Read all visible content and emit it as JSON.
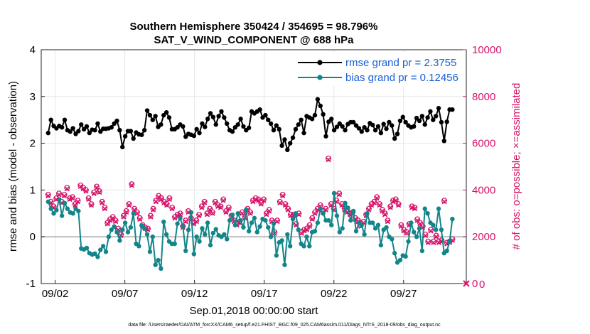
{
  "chart_data": {
    "type": "line",
    "title": "Southern Hemisphere 350424 / 354695 = 98.796%",
    "subtitle": "SAT_V_WIND_COMPONENT @ 688 hPa",
    "xlabel": "Sep.01,2018 00:00:00 start",
    "ylabel": "rmse and bias (model - observation)",
    "ylabel_right": "# of obs: o=possible; ×=assimilated",
    "xlim": [
      0.5,
      31
    ],
    "ylim": [
      -1,
      4
    ],
    "ylim_right": [
      0,
      10000
    ],
    "x_ticks": [
      1.5,
      6.5,
      11.5,
      16.5,
      21.5,
      26.5
    ],
    "x_tick_labels": [
      "09/02",
      "09/07",
      "09/12",
      "09/17",
      "09/22",
      "09/27"
    ],
    "y_ticks": [
      -1,
      0,
      1,
      2,
      3,
      4
    ],
    "y_tick_labels": [
      "-1",
      "0",
      "1",
      "2",
      "3",
      "4"
    ],
    "y_ticks_right": [
      0,
      2000,
      4000,
      6000,
      8000,
      10000
    ],
    "y_tick_labels_right": [
      "0",
      "2000",
      "4000",
      "6000",
      "8000",
      "10000"
    ],
    "zero_line": 0,
    "grid": true,
    "legend_position": "top-right",
    "series": [
      {
        "name": "rmse grand pr = 2.3755",
        "color": "#000000",
        "axis": "left",
        "values": [
          2.22,
          2.5,
          2.37,
          2.32,
          2.37,
          2.34,
          2.5,
          2.28,
          2.25,
          2.32,
          2.2,
          2.26,
          2.4,
          2.3,
          2.36,
          2.22,
          2.29,
          2.28,
          2.42,
          2.25,
          2.31,
          2.31,
          2.32,
          2.34,
          2.42,
          2.48,
          2.28,
          1.92,
          2.15,
          2.26,
          2.26,
          2.1,
          2.23,
          2.19,
          2.18,
          2.28,
          2.7,
          2.6,
          2.5,
          2.58,
          2.35,
          2.4,
          2.6,
          2.66,
          2.55,
          2.3,
          2.3,
          2.34,
          2.4,
          2.36,
          2.14,
          2.2,
          2.18,
          2.16,
          2.3,
          2.22,
          2.42,
          2.35,
          2.52,
          2.64,
          2.56,
          2.4,
          2.58,
          2.68,
          2.55,
          2.42,
          2.28,
          2.25,
          2.34,
          2.4,
          2.52,
          2.36,
          2.28,
          2.33,
          2.68,
          2.64,
          2.68,
          2.72,
          2.55,
          2.6,
          2.5,
          2.42,
          2.28,
          2.38,
          2.3,
          1.95,
          2.08,
          1.86,
          2.0,
          2.12,
          2.3,
          2.4,
          2.5,
          2.22,
          2.58,
          2.55,
          2.52,
          2.6,
          2.94,
          2.8,
          2.62,
          2.15,
          2.46,
          2.52,
          2.28,
          2.35,
          2.42,
          2.36,
          2.28,
          2.41,
          2.45,
          2.45,
          2.38,
          2.32,
          2.25,
          2.34,
          2.28,
          2.43,
          2.39,
          2.28,
          2.36,
          2.22,
          2.41,
          2.31,
          2.45,
          2.38,
          2.1,
          2.2,
          2.48,
          2.56,
          2.45,
          2.38,
          2.34,
          2.36,
          2.54,
          2.48,
          2.58,
          2.4,
          2.55,
          2.68,
          2.5,
          2.58,
          2.75,
          2.45,
          2.05,
          2.46,
          2.72,
          2.72
        ]
      },
      {
        "name": "bias grand pr = 0.12456",
        "color": "#12858a",
        "axis": "left",
        "values": [
          0.75,
          0.6,
          0.5,
          0.57,
          0.8,
          0.45,
          0.72,
          0.6,
          0.52,
          0.5,
          0.6,
          0.55,
          -0.25,
          -0.27,
          -0.24,
          -0.35,
          -0.38,
          -0.36,
          -0.43,
          -0.28,
          -0.2,
          -0.32,
          0.0,
          0.15,
          0.22,
          0.1,
          -0.08,
          0.15,
          0.3,
          0.1,
          0.2,
          0.5,
          -0.15,
          -0.2,
          0.24,
          0.18,
          0.05,
          -0.32,
          0.0,
          -0.6,
          -0.5,
          -0.68,
          0.32,
          0.05,
          -0.1,
          -0.15,
          -0.15,
          0.28,
          0.4,
          0.22,
          -0.3,
          0.15,
          0.52,
          -0.37,
          0.0,
          -0.1,
          0.18,
          0.05,
          0.3,
          -0.18,
          0.08,
          0.16,
          0.03,
          0.0,
          0.05,
          -0.05,
          0.35,
          0.47,
          0.25,
          0.5,
          0.35,
          0.2,
          0.58,
          0.12,
          0.3,
          0.4,
          0.1,
          0.22,
          0.38,
          0.35,
          0.2,
          0.0,
          0.28,
          -0.4,
          -0.12,
          -0.08,
          -0.6,
          0.05,
          -0.2,
          0.38,
          0.5,
          0.15,
          -0.15,
          -0.2,
          0.0,
          -0.2,
          0.1,
          0.12,
          0.3,
          0.6,
          0.5,
          0.35,
          0.35,
          0.25,
          0.93,
          0.45,
          0.1,
          0.18,
          0.72,
          0.62,
          0.35,
          0.55,
          0.12,
          0.3,
          0.25,
          0.05,
          0.5,
          0.3,
          0.3,
          0.18,
          0.25,
          -0.18,
          0.15,
          0.2,
          0.0,
          -0.05,
          -0.35,
          -0.55,
          -0.5,
          -0.4,
          -0.42,
          -0.1,
          0.3,
          0.1,
          0.0,
          0.18,
          -0.3,
          0.6,
          0.5,
          0.3,
          0.25,
          0.15,
          0.6,
          0.15,
          -0.35,
          -0.3,
          -0.1,
          0.38
        ]
      },
      {
        "name": "# of obs possible",
        "color": "#d6136a",
        "axis": "right",
        "values": [
          3800,
          3500,
          3300,
          3650,
          3850,
          3500,
          3800,
          4100,
          3650,
          3700,
          3400,
          3550,
          4200,
          4100,
          4000,
          3650,
          3400,
          3900,
          4150,
          3950,
          3500,
          3250,
          2600,
          2750,
          2850,
          2700,
          2350,
          2100,
          2900,
          3100,
          3400,
          4250,
          3200,
          3050,
          2800,
          2500,
          2400,
          2350,
          2900,
          3200,
          3550,
          3750,
          3650,
          3500,
          3400,
          3650,
          3250,
          2850,
          2950,
          3000,
          2450,
          2700,
          3100,
          2800,
          2600,
          2700,
          2950,
          3300,
          3500,
          3000,
          3200,
          3050,
          3500,
          3350,
          3300,
          3600,
          3100,
          3250,
          2900,
          2700,
          2550,
          2650,
          3050,
          2850,
          3200,
          3050,
          3550,
          3650,
          3600,
          3450,
          3600,
          3000,
          3150,
          2700,
          2200,
          2700,
          3500,
          3800,
          3400,
          3200,
          2950,
          2950,
          2550,
          3000,
          2200,
          2300,
          2350,
          2500,
          2800,
          3050,
          3200,
          3350,
          3100,
          3200,
          5350,
          3400,
          3200,
          3550,
          3850,
          3400,
          3200,
          3100,
          3000,
          3050,
          2800,
          2700,
          2500,
          2650,
          2950,
          3200,
          3400,
          3500,
          3700,
          3400,
          3150,
          3000,
          2700,
          3300,
          3550,
          3600,
          3400,
          2500,
          2300,
          2200,
          2550,
          3300,
          3250,
          2750,
          2600,
          2450,
          2100,
          1800,
          2300,
          1800,
          2050,
          1800,
          1850,
          3550,
          1750,
          1800,
          1900
        ]
      },
      {
        "name": "# of obs assimilated",
        "color": "#d6136a",
        "axis": "right",
        "values": [
          3750,
          3450,
          3250,
          3600,
          3800,
          3450,
          3750,
          4050,
          3600,
          3650,
          3350,
          3500,
          4150,
          4050,
          3950,
          3600,
          3350,
          3850,
          4100,
          3900,
          3450,
          3200,
          2550,
          2700,
          2800,
          2650,
          2300,
          2050,
          2850,
          3050,
          3350,
          4200,
          3150,
          3000,
          2750,
          2450,
          2350,
          2300,
          2850,
          3150,
          3500,
          3700,
          3600,
          3450,
          3350,
          3600,
          3200,
          2800,
          2900,
          2950,
          2400,
          2650,
          3050,
          2750,
          2550,
          2650,
          2900,
          3250,
          3450,
          2950,
          3150,
          3000,
          3450,
          3300,
          3250,
          3550,
          3050,
          3200,
          2850,
          2650,
          2500,
          2600,
          3000,
          2800,
          3150,
          3000,
          3500,
          3600,
          3550,
          3400,
          3550,
          2950,
          3100,
          2650,
          2150,
          2650,
          3450,
          3750,
          3350,
          3150,
          2900,
          2900,
          2500,
          2950,
          2150,
          2250,
          2300,
          2450,
          2750,
          3000,
          3150,
          3300,
          3050,
          3150,
          5300,
          3350,
          3150,
          3500,
          3800,
          3350,
          3150,
          3050,
          2950,
          3000,
          2750,
          2650,
          2450,
          2600,
          2900,
          3150,
          3350,
          3450,
          3650,
          3350,
          3100,
          2950,
          2650,
          3250,
          3500,
          3550,
          3350,
          2450,
          2250,
          2150,
          2500,
          3250,
          3200,
          2700,
          2550,
          2400,
          2050,
          1750,
          2250,
          1750,
          2000,
          1750,
          1800,
          3500,
          1700,
          1750,
          1850
        ]
      }
    ],
    "annotations": [
      {
        "text": "0",
        "note": "obs count marker at x = 31, right axis"
      }
    ]
  },
  "footer": "data file: /Users/raeder/DAI/ATM_forcXX/CAM6_setup/f.e21.FHIST_BGC.f09_025.CAM6assim.011/Diags_NTrS_2018-09/obs_diag_output.nc"
}
